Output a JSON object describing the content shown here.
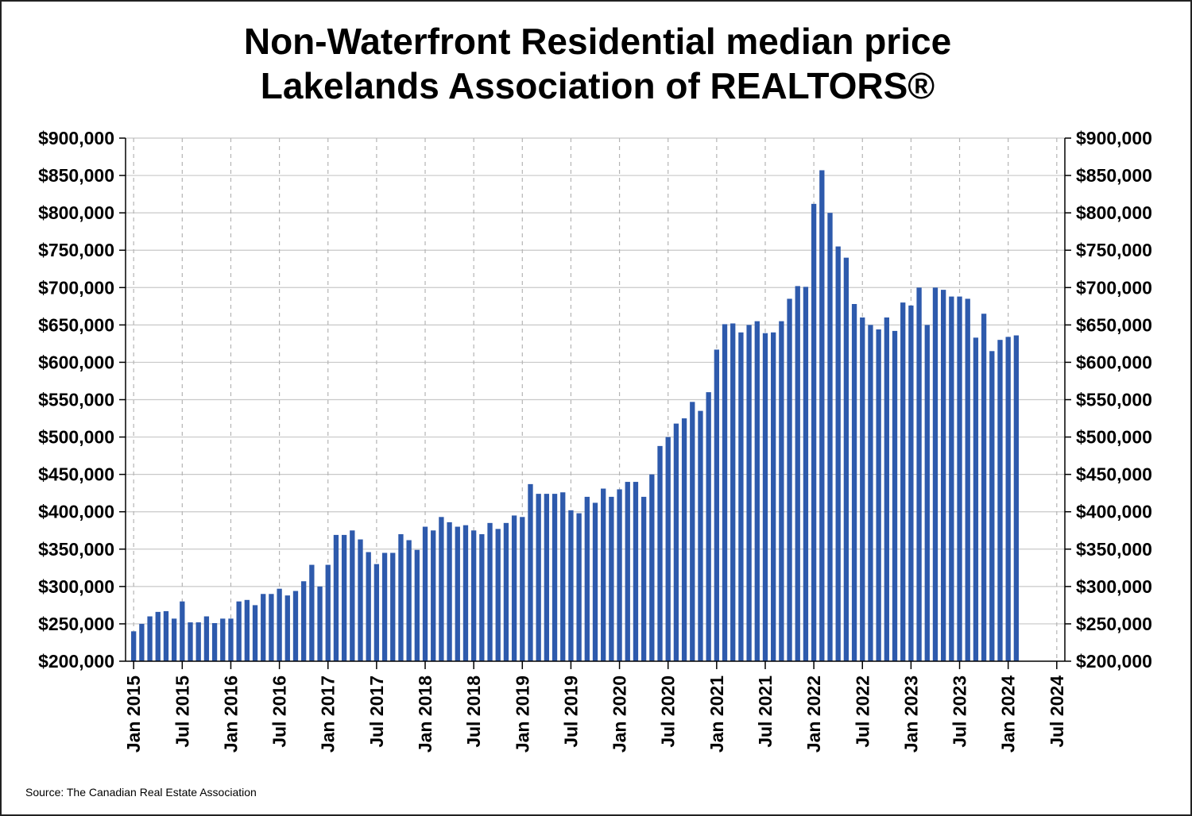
{
  "chart_data": {
    "type": "bar",
    "title": "Non-Waterfront Residential median price",
    "subtitle": "Lakelands Association of REALTORS®",
    "source": "Source: The Canadian Real Estate Association",
    "xlabel": "",
    "ylabel": "",
    "ylim": [
      200000,
      900000
    ],
    "y_ticks": [
      200000,
      250000,
      300000,
      350000,
      400000,
      450000,
      500000,
      550000,
      600000,
      650000,
      700000,
      750000,
      800000,
      850000,
      900000
    ],
    "y_tick_labels": [
      "$200,000",
      "$250,000",
      "$300,000",
      "$350,000",
      "$400,000",
      "$450,000",
      "$500,000",
      "$550,000",
      "$600,000",
      "$650,000",
      "$700,000",
      "$750,000",
      "$800,000",
      "$850,000",
      "$900,000"
    ],
    "x_tick_labels": [
      "Jan 2015",
      "Jul 2015",
      "Jan 2016",
      "Jul 2016",
      "Jan 2017",
      "Jul 2017",
      "Jan 2018",
      "Jul 2018",
      "Jan 2019",
      "Jul 2019",
      "Jan 2020",
      "Jul 2020",
      "Jan 2021",
      "Jul 2021",
      "Jan 2022",
      "Jul 2022",
      "Jan 2023",
      "Jul 2023",
      "Jan 2024",
      "Jul 2024"
    ],
    "x_tick_month_index": [
      0,
      6,
      12,
      18,
      24,
      30,
      36,
      42,
      48,
      54,
      60,
      66,
      72,
      78,
      84,
      90,
      96,
      102,
      108,
      114
    ],
    "x_month_range": [
      -1,
      115
    ],
    "bar_color": "#2E5AAC",
    "grid": true,
    "series": [
      {
        "name": "Median price",
        "start": "Jan 2015",
        "values": [
          240000,
          250000,
          260000,
          266000,
          267000,
          257000,
          280000,
          252000,
          252000,
          260000,
          251000,
          257000,
          257000,
          280000,
          282000,
          275000,
          290000,
          290000,
          297000,
          288000,
          294000,
          307000,
          329000,
          300000,
          329000,
          369000,
          369000,
          375000,
          363000,
          346000,
          330000,
          345000,
          345000,
          370000,
          362000,
          349000,
          380000,
          375000,
          393000,
          386000,
          380000,
          382000,
          375000,
          370000,
          385000,
          377000,
          385000,
          395000,
          393000,
          437000,
          424000,
          424000,
          424000,
          426000,
          402000,
          398000,
          420000,
          412000,
          431000,
          420000,
          430000,
          440000,
          440000,
          420000,
          450000,
          488000,
          500000,
          518000,
          525000,
          547000,
          535000,
          560000,
          617000,
          651000,
          652000,
          640000,
          650000,
          655000,
          639000,
          640000,
          655000,
          685000,
          702000,
          701000,
          812000,
          857000,
          800000,
          755000,
          740000,
          678000,
          660000,
          650000,
          644000,
          660000,
          642000,
          680000,
          676000,
          700000,
          650000,
          700000,
          697000,
          688000,
          688000,
          685000,
          633000,
          665000,
          615000,
          630000,
          634000,
          636000
        ]
      }
    ]
  }
}
